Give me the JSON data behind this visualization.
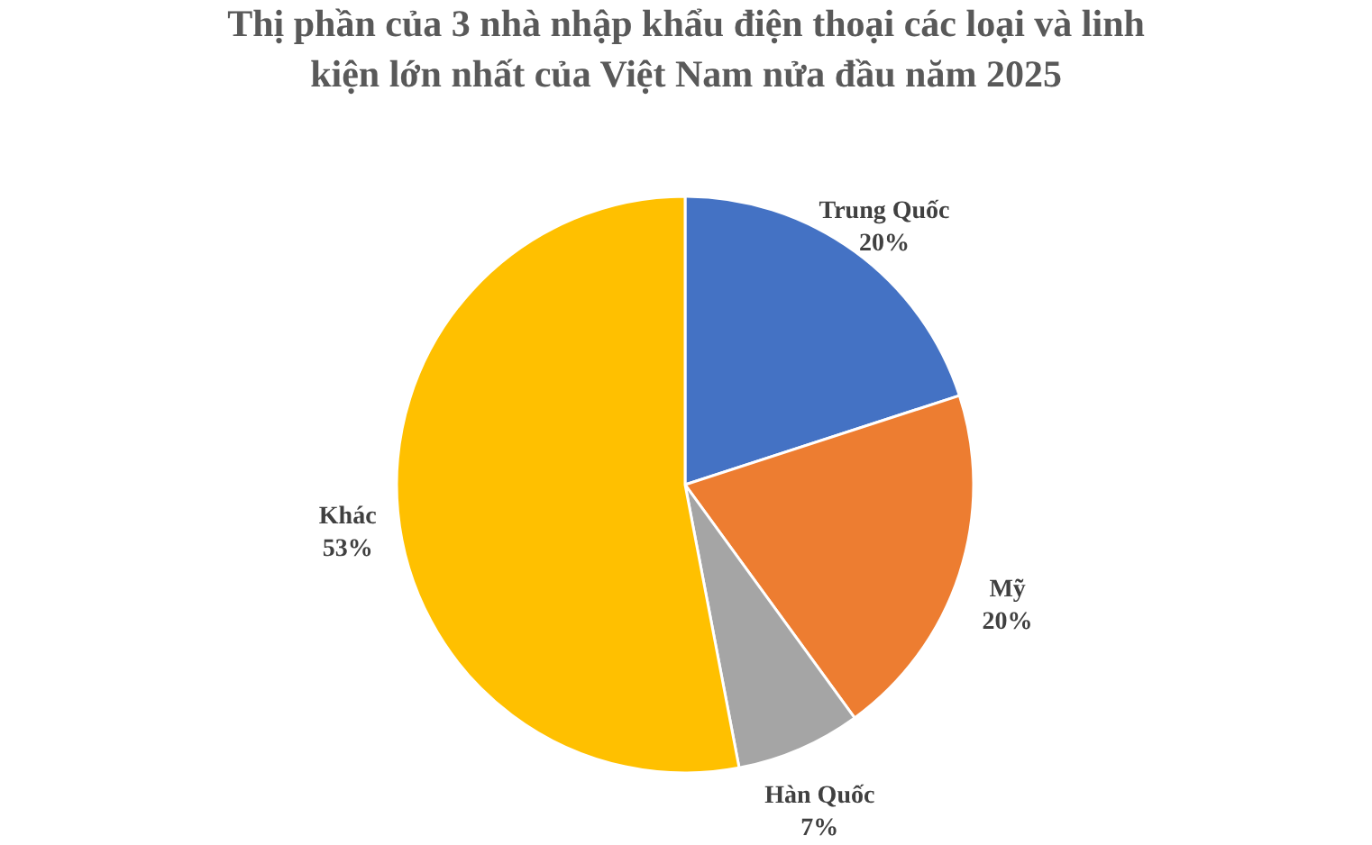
{
  "chart_data": {
    "type": "pie",
    "title": "Thị phần của 3 nhà nhập khẩu điện thoại các loại và linh kiện lớn nhất của Việt Nam nửa đầu năm 2025",
    "categories": [
      "Trung Quốc",
      "Mỹ",
      "Hàn Quốc",
      "Khác"
    ],
    "values": [
      20,
      20,
      7,
      53
    ],
    "colors": [
      "#4472c4",
      "#ed7d31",
      "#a5a5a5",
      "#ffc000"
    ],
    "value_labels": [
      "20%",
      "20%",
      "7%",
      "53%"
    ],
    "legend": false
  }
}
